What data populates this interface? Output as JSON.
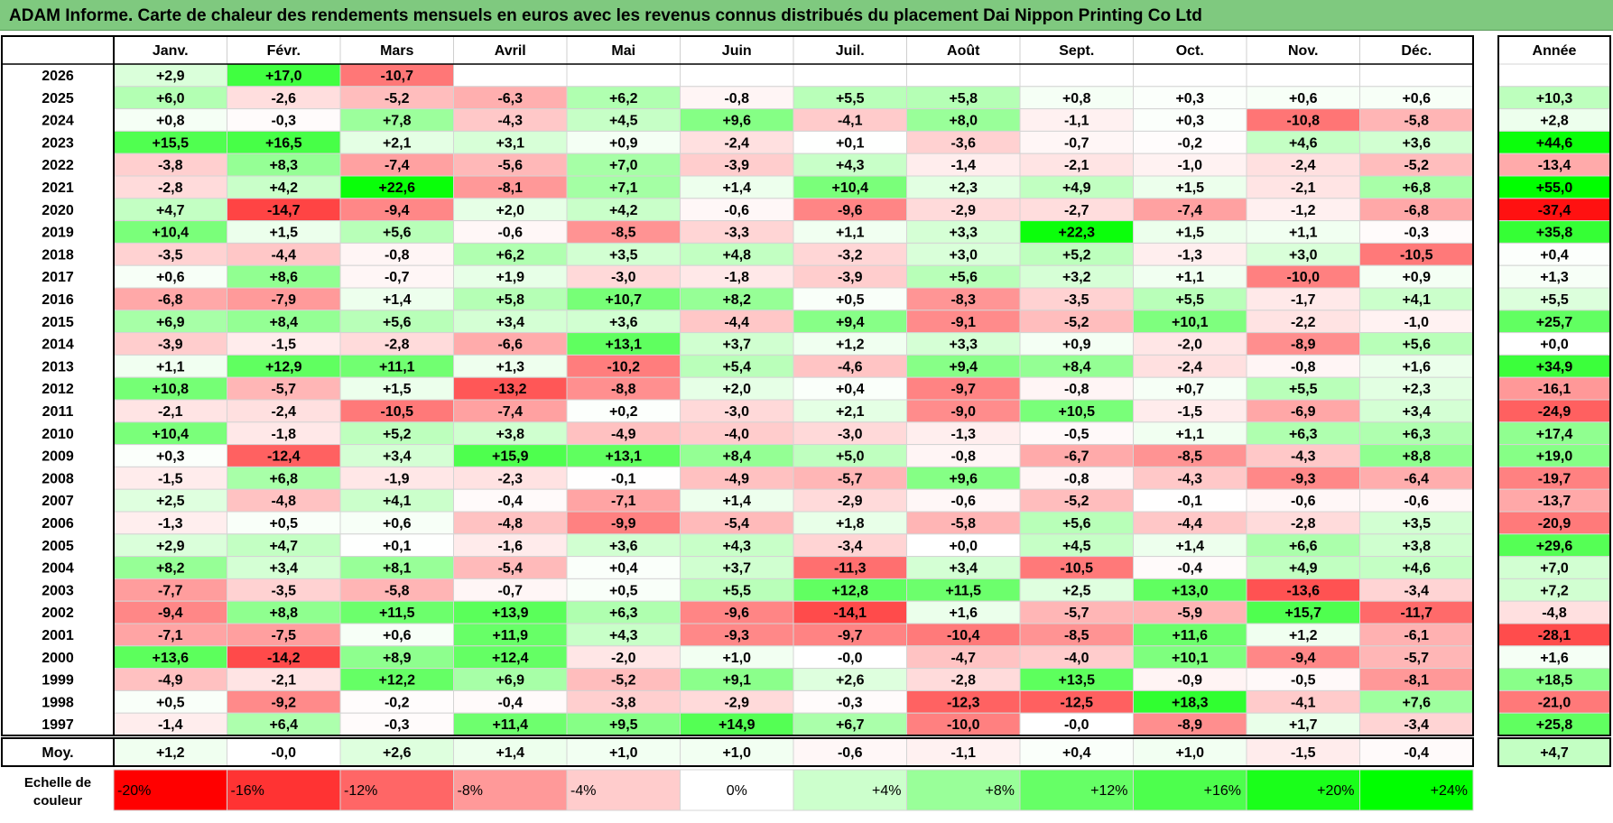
{
  "title": "ADAM Informe. Carte de chaleur des rendements mensuels en euros avec les revenus connus distribués du placement Dai Nippon Printing Co Ltd",
  "chart_data": {
    "type": "heatmap",
    "title": "ADAM Informe. Carte de chaleur des rendements mensuels en euros avec les revenus connus distribués du placement Dai Nippon Printing Co Ltd",
    "months": [
      "Janv.",
      "Févr.",
      "Mars",
      "Avril",
      "Mai",
      "Juin",
      "Juil.",
      "Août",
      "Sept.",
      "Oct.",
      "Nov.",
      "Déc."
    ],
    "year_header": "Année",
    "rows": [
      {
        "year": "2026",
        "values": [
          "+2,9",
          "+17,0",
          "-10,7",
          "",
          "",
          "",
          "",
          "",
          "",
          "",
          "",
          ""
        ],
        "annual": ""
      },
      {
        "year": "2025",
        "values": [
          "+6,0",
          "-2,6",
          "-5,2",
          "-6,3",
          "+6,2",
          "-0,8",
          "+5,5",
          "+5,8",
          "+0,8",
          "+0,3",
          "+0,6",
          "+0,6"
        ],
        "annual": "+10,3"
      },
      {
        "year": "2024",
        "values": [
          "+0,8",
          "-0,3",
          "+7,8",
          "-4,3",
          "+4,5",
          "+9,6",
          "-4,1",
          "+8,0",
          "-1,1",
          "+0,3",
          "-10,8",
          "-5,8"
        ],
        "annual": "+2,8"
      },
      {
        "year": "2023",
        "values": [
          "+15,5",
          "+16,5",
          "+2,1",
          "+3,1",
          "+0,9",
          "-2,4",
          "+0,1",
          "-3,6",
          "-0,7",
          "-0,2",
          "+4,6",
          "+3,6"
        ],
        "annual": "+44,6"
      },
      {
        "year": "2022",
        "values": [
          "-3,8",
          "+8,3",
          "-7,4",
          "-5,6",
          "+7,0",
          "-3,9",
          "+4,3",
          "-1,4",
          "-2,1",
          "-1,0",
          "-2,4",
          "-5,2"
        ],
        "annual": "-13,4"
      },
      {
        "year": "2021",
        "values": [
          "-2,8",
          "+4,2",
          "+22,6",
          "-8,1",
          "+7,1",
          "+1,4",
          "+10,4",
          "+2,3",
          "+4,9",
          "+1,5",
          "-2,1",
          "+6,8"
        ],
        "annual": "+55,0"
      },
      {
        "year": "2020",
        "values": [
          "+4,7",
          "-14,7",
          "-9,4",
          "+2,0",
          "+4,2",
          "-0,6",
          "-9,6",
          "-2,9",
          "-2,7",
          "-7,4",
          "-1,2",
          "-6,8"
        ],
        "annual": "-37,4"
      },
      {
        "year": "2019",
        "values": [
          "+10,4",
          "+1,5",
          "+5,6",
          "-0,6",
          "-8,5",
          "-3,3",
          "+1,1",
          "+3,3",
          "+22,3",
          "+1,5",
          "+1,1",
          "-0,3"
        ],
        "annual": "+35,8"
      },
      {
        "year": "2018",
        "values": [
          "-3,5",
          "-4,4",
          "-0,8",
          "+6,2",
          "+3,5",
          "+4,8",
          "-3,2",
          "+3,0",
          "+5,2",
          "-1,3",
          "+3,0",
          "-10,5"
        ],
        "annual": "+0,4"
      },
      {
        "year": "2017",
        "values": [
          "+0,6",
          "+8,6",
          "-0,7",
          "+1,9",
          "-3,0",
          "-1,8",
          "-3,9",
          "+5,6",
          "+3,2",
          "+1,1",
          "-10,0",
          "+0,9"
        ],
        "annual": "+1,3"
      },
      {
        "year": "2016",
        "values": [
          "-6,8",
          "-7,9",
          "+1,4",
          "+5,8",
          "+10,7",
          "+8,2",
          "+0,5",
          "-8,3",
          "-3,5",
          "+5,5",
          "-1,7",
          "+4,1"
        ],
        "annual": "+5,5"
      },
      {
        "year": "2015",
        "values": [
          "+6,9",
          "+8,4",
          "+5,6",
          "+3,4",
          "+3,6",
          "-4,4",
          "+9,4",
          "-9,1",
          "-5,2",
          "+10,1",
          "-2,2",
          "-1,0"
        ],
        "annual": "+25,7"
      },
      {
        "year": "2014",
        "values": [
          "-3,9",
          "-1,5",
          "-2,8",
          "-6,6",
          "+13,1",
          "+3,7",
          "+1,2",
          "+3,3",
          "+0,9",
          "-2,0",
          "-8,9",
          "+5,6"
        ],
        "annual": "+0,0"
      },
      {
        "year": "2013",
        "values": [
          "+1,1",
          "+12,9",
          "+11,1",
          "+1,3",
          "-10,2",
          "+5,4",
          "-4,6",
          "+9,4",
          "+8,4",
          "-2,4",
          "-0,8",
          "+1,6"
        ],
        "annual": "+34,9"
      },
      {
        "year": "2012",
        "values": [
          "+10,8",
          "-5,7",
          "+1,5",
          "-13,2",
          "-8,8",
          "+2,0",
          "+0,4",
          "-9,7",
          "-0,8",
          "+0,7",
          "+5,5",
          "+2,3"
        ],
        "annual": "-16,1"
      },
      {
        "year": "2011",
        "values": [
          "-2,1",
          "-2,4",
          "-10,5",
          "-7,4",
          "+0,2",
          "-3,0",
          "+2,1",
          "-9,0",
          "+10,5",
          "-1,5",
          "-6,9",
          "+3,4"
        ],
        "annual": "-24,9"
      },
      {
        "year": "2010",
        "values": [
          "+10,4",
          "-1,8",
          "+5,2",
          "+3,8",
          "-4,9",
          "-4,0",
          "-3,0",
          "-1,3",
          "-0,5",
          "+1,1",
          "+6,3",
          "+6,3"
        ],
        "annual": "+17,4"
      },
      {
        "year": "2009",
        "values": [
          "+0,3",
          "-12,4",
          "+3,4",
          "+15,9",
          "+13,1",
          "+8,4",
          "+5,0",
          "-0,8",
          "-6,7",
          "-8,5",
          "-4,3",
          "+8,8"
        ],
        "annual": "+19,0"
      },
      {
        "year": "2008",
        "values": [
          "-1,5",
          "+6,8",
          "-1,9",
          "-2,3",
          "-0,1",
          "-4,9",
          "-5,7",
          "+9,6",
          "-0,8",
          "-4,3",
          "-9,3",
          "-6,4"
        ],
        "annual": "-19,7"
      },
      {
        "year": "2007",
        "values": [
          "+2,5",
          "-4,8",
          "+4,1",
          "-0,4",
          "-7,1",
          "+1,4",
          "-2,9",
          "-0,6",
          "-5,2",
          "-0,1",
          "-0,6",
          "-0,6"
        ],
        "annual": "-13,7"
      },
      {
        "year": "2006",
        "values": [
          "-1,3",
          "+0,5",
          "+0,6",
          "-4,8",
          "-9,9",
          "-5,4",
          "+1,8",
          "-5,8",
          "+5,6",
          "-4,4",
          "-2,8",
          "+3,5"
        ],
        "annual": "-20,9"
      },
      {
        "year": "2005",
        "values": [
          "+2,9",
          "+4,7",
          "+0,1",
          "-1,6",
          "+3,6",
          "+4,3",
          "-3,4",
          "+0,0",
          "+4,5",
          "+1,4",
          "+6,6",
          "+3,8"
        ],
        "annual": "+29,6"
      },
      {
        "year": "2004",
        "values": [
          "+8,2",
          "+3,4",
          "+8,1",
          "-5,4",
          "+0,4",
          "+3,7",
          "-11,3",
          "+3,4",
          "-10,5",
          "-0,4",
          "+4,9",
          "+4,6"
        ],
        "annual": "+7,0"
      },
      {
        "year": "2003",
        "values": [
          "-7,7",
          "-3,5",
          "-5,8",
          "-0,7",
          "+0,5",
          "+5,5",
          "+12,8",
          "+11,5",
          "+2,5",
          "+13,0",
          "-13,6",
          "-3,4"
        ],
        "annual": "+7,2"
      },
      {
        "year": "2002",
        "values": [
          "-9,4",
          "+8,8",
          "+11,5",
          "+13,9",
          "+6,3",
          "-9,6",
          "-14,1",
          "+1,6",
          "-5,7",
          "-5,9",
          "+15,7",
          "-11,7"
        ],
        "annual": "-4,8"
      },
      {
        "year": "2001",
        "values": [
          "-7,1",
          "-7,5",
          "+0,6",
          "+11,9",
          "+4,3",
          "-9,3",
          "-9,7",
          "-10,4",
          "-8,5",
          "+11,6",
          "+1,2",
          "-6,1"
        ],
        "annual": "-28,1"
      },
      {
        "year": "2000",
        "values": [
          "+13,6",
          "-14,2",
          "+8,9",
          "+12,4",
          "-2,0",
          "+1,0",
          "-0,0",
          "-4,7",
          "-4,0",
          "+10,1",
          "-9,4",
          "-5,7"
        ],
        "annual": "+1,6"
      },
      {
        "year": "1999",
        "values": [
          "-4,9",
          "-2,1",
          "+12,2",
          "+6,9",
          "-5,2",
          "+9,1",
          "+2,6",
          "-2,8",
          "+13,5",
          "-0,9",
          "-0,5",
          "-8,1"
        ],
        "annual": "+18,5"
      },
      {
        "year": "1998",
        "values": [
          "+0,5",
          "-9,2",
          "-0,2",
          "-0,4",
          "-3,8",
          "-2,9",
          "-0,3",
          "-12,3",
          "-12,5",
          "+18,3",
          "-4,1",
          "+7,6"
        ],
        "annual": "-21,0"
      },
      {
        "year": "1997",
        "values": [
          "-1,4",
          "+6,4",
          "-0,3",
          "+11,4",
          "+9,5",
          "+14,9",
          "+6,7",
          "-10,0",
          "-0,0",
          "-8,9",
          "+1,7",
          "-3,4"
        ],
        "annual": "+25,8"
      }
    ],
    "average": {
      "label": "Moy.",
      "values": [
        "+1,2",
        "-0,0",
        "+2,6",
        "+1,4",
        "+1,0",
        "+1,0",
        "-0,6",
        "-1,1",
        "+0,4",
        "+1,0",
        "-1,5",
        "-0,4"
      ],
      "annual": "+4,7"
    },
    "color_scale": {
      "label_line1": "Echelle de",
      "label_line2": "couleur",
      "stops": [
        {
          "label": "-20%",
          "value": -20,
          "color": "#ff0000"
        },
        {
          "label": "-16%",
          "value": -16,
          "color": "#ff3333"
        },
        {
          "label": "-12%",
          "value": -12,
          "color": "#ff6666"
        },
        {
          "label": "-8%",
          "value": -8,
          "color": "#ff9999"
        },
        {
          "label": "-4%",
          "value": -4,
          "color": "#ffcccc"
        },
        {
          "label": "0%",
          "value": 0,
          "color": "#ffffff"
        },
        {
          "label": "+4%",
          "value": 4,
          "color": "#ccffcc"
        },
        {
          "label": "+8%",
          "value": 8,
          "color": "#99ff99"
        },
        {
          "label": "+12%",
          "value": 12,
          "color": "#66ff66"
        },
        {
          "label": "+16%",
          "value": 16,
          "color": "#4dff4d"
        },
        {
          "label": "+20%",
          "value": 20,
          "color": "#1aff1a"
        },
        {
          "label": "+24%",
          "value": 24,
          "color": "#00ff00"
        }
      ]
    }
  }
}
